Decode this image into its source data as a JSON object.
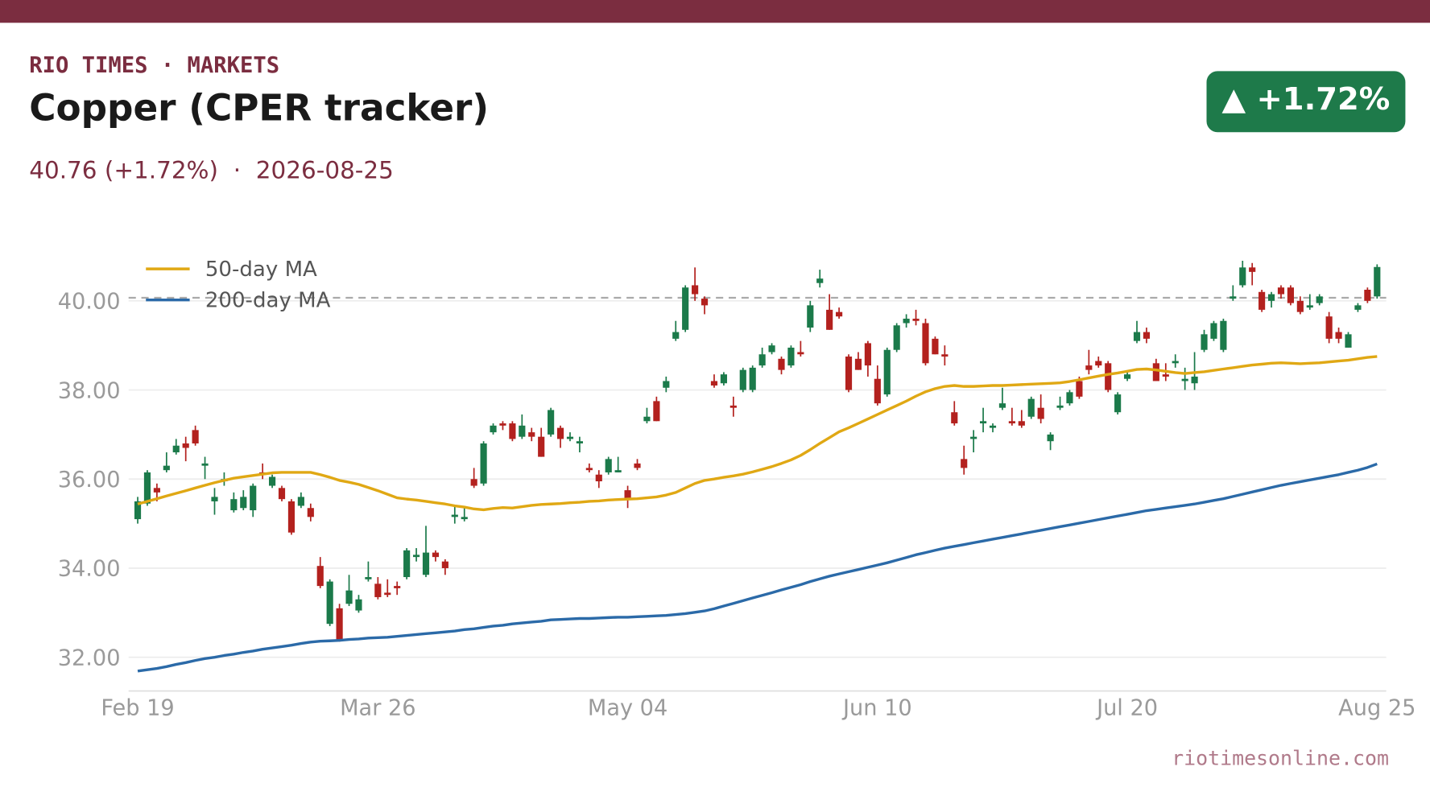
{
  "header": {
    "kicker": "RIO TIMES · MARKETS",
    "badge": "▲ +1.72%"
  },
  "chart_data": {
    "type": "candlestick",
    "title": "Copper (CPER tracker)",
    "subtitle": "40.76 (+1.72%)  ·  2026-08-25",
    "source": "riotimesonline.com",
    "up_color": "#1b7a4a",
    "down_color": "#b3211e",
    "grid": true,
    "legend": "upper left",
    "hline": 40.07,
    "ylim": [
      31.25,
      41.2
    ],
    "yticks": [
      {
        "value": 32,
        "label": "32.00"
      },
      {
        "value": 34,
        "label": "34.00"
      },
      {
        "value": 36,
        "label": "36.00"
      },
      {
        "value": 38,
        "label": "38.00"
      },
      {
        "value": 40,
        "label": "40.00"
      }
    ],
    "categories": [
      "Feb 19",
      null,
      null,
      null,
      null,
      null,
      null,
      null,
      null,
      null,
      null,
      null,
      null,
      null,
      null,
      null,
      null,
      null,
      null,
      null,
      null,
      null,
      null,
      null,
      null,
      "Mar 26",
      null,
      null,
      null,
      null,
      null,
      null,
      null,
      null,
      null,
      null,
      null,
      null,
      null,
      null,
      null,
      null,
      null,
      null,
      null,
      null,
      null,
      null,
      null,
      null,
      null,
      "May 04",
      null,
      null,
      null,
      null,
      null,
      null,
      null,
      null,
      null,
      null,
      null,
      null,
      null,
      null,
      null,
      null,
      null,
      null,
      null,
      null,
      null,
      null,
      null,
      null,
      null,
      "Jun 10",
      null,
      null,
      null,
      null,
      null,
      null,
      null,
      null,
      null,
      null,
      null,
      null,
      null,
      null,
      null,
      null,
      null,
      null,
      null,
      null,
      null,
      null,
      null,
      null,
      null,
      "Jul 20",
      null,
      null,
      null,
      null,
      null,
      null,
      null,
      null,
      null,
      null,
      null,
      null,
      null,
      null,
      null,
      null,
      null,
      null,
      null,
      null,
      null,
      null,
      null,
      null,
      null,
      "Aug 25"
    ],
    "open": [
      35.1,
      35.45,
      35.8,
      36.2,
      36.6,
      36.8,
      37.1,
      36.3,
      35.5,
      35.95,
      35.3,
      35.35,
      35.3,
      36.15,
      35.85,
      35.8,
      35.5,
      35.4,
      35.35,
      34.05,
      32.75,
      33.1,
      33.2,
      33.05,
      33.75,
      33.65,
      33.45,
      33.6,
      33.8,
      34.25,
      33.85,
      34.35,
      34.15,
      35.15,
      35.1,
      36.0,
      35.9,
      37.05,
      37.25,
      37.25,
      36.95,
      37.05,
      36.95,
      37.0,
      37.15,
      36.9,
      36.8,
      36.25,
      36.1,
      36.15,
      36.15,
      35.75,
      36.35,
      37.3,
      37.75,
      38.05,
      39.15,
      39.35,
      40.35,
      40.05,
      38.2,
      38.15,
      37.65,
      38.0,
      38.0,
      38.55,
      38.85,
      38.7,
      38.55,
      38.85,
      39.4,
      40.4,
      39.8,
      39.75,
      38.75,
      38.7,
      39.05,
      38.25,
      37.9,
      38.9,
      39.5,
      39.6,
      39.5,
      39.15,
      38.8,
      37.5,
      36.45,
      36.9,
      37.25,
      37.15,
      37.6,
      37.3,
      37.3,
      37.4,
      37.6,
      36.85,
      37.6,
      37.7,
      38.2,
      38.55,
      38.65,
      38.6,
      37.5,
      38.25,
      39.1,
      39.3,
      38.6,
      38.35,
      38.6,
      38.2,
      38.15,
      38.9,
      39.15,
      38.9,
      40.05,
      40.35,
      40.75,
      40.2,
      40.0,
      40.3,
      40.3,
      40.0,
      39.85,
      39.95,
      39.65,
      39.3,
      38.95,
      39.8,
      40.25,
      40.1
    ],
    "high": [
      35.6,
      36.2,
      35.9,
      36.6,
      36.9,
      36.95,
      37.2,
      36.5,
      35.8,
      36.15,
      35.7,
      35.75,
      35.9,
      36.35,
      36.1,
      35.85,
      35.55,
      35.7,
      35.45,
      34.25,
      33.75,
      33.2,
      33.85,
      33.4,
      34.15,
      33.8,
      33.75,
      33.7,
      34.45,
      34.45,
      34.95,
      34.4,
      34.2,
      35.4,
      35.35,
      36.25,
      36.85,
      37.25,
      37.3,
      37.3,
      37.45,
      37.15,
      37.15,
      37.6,
      37.2,
      37.05,
      36.95,
      36.35,
      36.2,
      36.5,
      36.5,
      35.85,
      36.45,
      37.6,
      37.85,
      38.3,
      39.55,
      40.35,
      40.75,
      40.1,
      38.35,
      38.4,
      37.85,
      38.5,
      38.55,
      38.95,
      39.05,
      38.75,
      39.0,
      39.1,
      40.0,
      40.7,
      40.15,
      39.85,
      38.8,
      38.85,
      39.1,
      38.55,
      38.95,
      39.5,
      39.7,
      39.8,
      39.6,
      39.2,
      39.0,
      37.75,
      36.75,
      37.1,
      37.6,
      37.25,
      38.05,
      37.6,
      37.55,
      37.85,
      37.9,
      37.05,
      37.85,
      38.0,
      38.3,
      38.9,
      38.75,
      38.65,
      37.95,
      38.4,
      39.55,
      39.4,
      38.7,
      38.6,
      38.8,
      38.5,
      38.85,
      39.35,
      39.55,
      39.6,
      40.35,
      40.9,
      40.85,
      40.25,
      40.2,
      40.35,
      40.35,
      40.1,
      40.15,
      40.15,
      39.75,
      39.4,
      39.3,
      39.95,
      40.3,
      40.82
    ],
    "low": [
      35.0,
      35.4,
      35.5,
      36.15,
      36.55,
      36.4,
      36.75,
      36.0,
      35.2,
      35.85,
      35.25,
      35.3,
      35.15,
      36.0,
      35.8,
      35.5,
      34.75,
      35.35,
      35.05,
      33.55,
      32.7,
      32.35,
      33.15,
      33.0,
      33.7,
      33.3,
      33.35,
      33.4,
      33.75,
      34.15,
      33.8,
      34.15,
      33.85,
      35.0,
      35.05,
      35.8,
      35.85,
      37.0,
      37.1,
      36.85,
      36.9,
      36.85,
      36.5,
      36.95,
      36.7,
      36.85,
      36.6,
      36.15,
      35.8,
      36.1,
      36.15,
      35.35,
      36.2,
      37.25,
      37.3,
      37.95,
      39.1,
      39.3,
      40.0,
      39.7,
      38.05,
      38.1,
      37.4,
      37.95,
      37.95,
      38.5,
      38.8,
      38.35,
      38.5,
      38.75,
      39.3,
      40.3,
      39.35,
      39.6,
      37.95,
      38.45,
      38.3,
      37.65,
      37.85,
      38.85,
      39.4,
      39.45,
      38.55,
      38.8,
      38.55,
      37.2,
      36.1,
      36.6,
      37.05,
      37.05,
      37.55,
      37.2,
      37.15,
      37.35,
      37.25,
      36.65,
      37.55,
      37.65,
      37.8,
      38.35,
      38.5,
      37.95,
      37.45,
      38.2,
      39.05,
      39.05,
      38.2,
      38.2,
      38.5,
      38.0,
      38.0,
      38.85,
      39.1,
      38.85,
      40.0,
      40.3,
      40.35,
      39.75,
      39.85,
      40.05,
      39.9,
      39.7,
      39.8,
      39.9,
      39.05,
      39.05,
      38.95,
      39.75,
      39.95,
      40.05
    ],
    "close": [
      35.5,
      36.15,
      35.7,
      36.3,
      36.75,
      36.7,
      36.8,
      36.35,
      35.6,
      36.0,
      35.55,
      35.6,
      35.85,
      36.1,
      36.05,
      35.55,
      34.8,
      35.6,
      35.15,
      33.6,
      33.7,
      32.4,
      33.5,
      33.3,
      33.8,
      33.35,
      33.4,
      33.55,
      34.4,
      34.3,
      34.35,
      34.25,
      34.0,
      35.2,
      35.15,
      35.85,
      36.8,
      37.2,
      37.2,
      36.9,
      37.2,
      36.95,
      36.5,
      37.55,
      36.9,
      36.95,
      36.85,
      36.2,
      35.95,
      36.45,
      36.2,
      35.55,
      36.25,
      37.4,
      37.3,
      38.2,
      39.3,
      40.3,
      40.15,
      39.9,
      38.1,
      38.35,
      37.6,
      38.45,
      38.5,
      38.8,
      39.0,
      38.45,
      38.95,
      38.8,
      39.9,
      40.5,
      39.35,
      39.65,
      38.0,
      38.45,
      38.55,
      37.7,
      38.9,
      39.45,
      39.6,
      39.55,
      38.6,
      38.8,
      38.75,
      37.25,
      36.25,
      36.95,
      37.3,
      37.2,
      37.7,
      37.25,
      37.2,
      37.8,
      37.35,
      37.0,
      37.65,
      37.95,
      37.85,
      38.45,
      38.55,
      38.0,
      37.9,
      38.35,
      39.3,
      39.15,
      38.2,
      38.3,
      38.65,
      38.25,
      38.3,
      39.25,
      39.5,
      39.55,
      40.1,
      40.75,
      40.65,
      39.8,
      40.15,
      40.15,
      39.95,
      39.75,
      39.9,
      40.1,
      39.15,
      39.15,
      39.25,
      39.9,
      40.0,
      40.76
    ],
    "series": [
      {
        "name": "50-day MA",
        "color": "#e0a814",
        "values": [
          35.44,
          35.5,
          35.56,
          35.62,
          35.68,
          35.74,
          35.8,
          35.86,
          35.92,
          35.97,
          36.02,
          36.05,
          36.08,
          36.11,
          36.14,
          36.15,
          36.15,
          36.15,
          36.15,
          36.1,
          36.04,
          35.97,
          35.93,
          35.88,
          35.81,
          35.74,
          35.66,
          35.58,
          35.55,
          35.53,
          35.5,
          35.47,
          35.44,
          35.4,
          35.37,
          35.33,
          35.31,
          35.34,
          35.36,
          35.35,
          35.38,
          35.41,
          35.43,
          35.44,
          35.45,
          35.47,
          35.48,
          35.5,
          35.51,
          35.53,
          35.54,
          35.55,
          35.56,
          35.58,
          35.6,
          35.64,
          35.7,
          35.8,
          35.9,
          35.97,
          36.0,
          36.04,
          36.07,
          36.11,
          36.16,
          36.22,
          36.28,
          36.35,
          36.43,
          36.53,
          36.66,
          36.8,
          36.93,
          37.06,
          37.15,
          37.25,
          37.35,
          37.45,
          37.55,
          37.65,
          37.75,
          37.86,
          37.96,
          38.03,
          38.08,
          38.1,
          38.08,
          38.08,
          38.09,
          38.1,
          38.1,
          38.11,
          38.12,
          38.13,
          38.14,
          38.15,
          38.16,
          38.19,
          38.23,
          38.27,
          38.31,
          38.35,
          38.38,
          38.42,
          38.46,
          38.47,
          38.45,
          38.42,
          38.39,
          38.37,
          38.39,
          38.41,
          38.44,
          38.47,
          38.5,
          38.53,
          38.56,
          38.58,
          38.6,
          38.61,
          38.6,
          38.59,
          38.6,
          38.61,
          38.63,
          38.65,
          38.67,
          38.7,
          38.73,
          38.75
        ]
      },
      {
        "name": "200-day MA",
        "color": "#2b6aa8",
        "values": [
          31.69,
          31.72,
          31.75,
          31.79,
          31.84,
          31.88,
          31.93,
          31.97,
          32.0,
          32.04,
          32.07,
          32.11,
          32.14,
          32.18,
          32.21,
          32.24,
          32.27,
          32.31,
          32.34,
          32.36,
          32.37,
          32.38,
          32.4,
          32.41,
          32.43,
          32.44,
          32.45,
          32.47,
          32.49,
          32.51,
          32.53,
          32.55,
          32.57,
          32.59,
          32.62,
          32.64,
          32.67,
          32.7,
          32.72,
          32.75,
          32.77,
          32.79,
          32.81,
          32.84,
          32.85,
          32.86,
          32.87,
          32.87,
          32.88,
          32.89,
          32.9,
          32.9,
          32.91,
          32.92,
          32.93,
          32.94,
          32.96,
          32.98,
          33.01,
          33.04,
          33.09,
          33.15,
          33.21,
          33.27,
          33.33,
          33.39,
          33.45,
          33.51,
          33.57,
          33.63,
          33.7,
          33.76,
          33.82,
          33.87,
          33.92,
          33.97,
          34.02,
          34.07,
          34.12,
          34.18,
          34.24,
          34.3,
          34.35,
          34.4,
          34.45,
          34.49,
          34.53,
          34.57,
          34.61,
          34.65,
          34.69,
          34.73,
          34.77,
          34.81,
          34.85,
          34.89,
          34.93,
          34.97,
          35.01,
          35.05,
          35.09,
          35.13,
          35.17,
          35.21,
          35.25,
          35.29,
          35.32,
          35.35,
          35.38,
          35.41,
          35.44,
          35.48,
          35.52,
          35.56,
          35.61,
          35.66,
          35.71,
          35.76,
          35.81,
          35.86,
          35.9,
          35.94,
          35.98,
          36.02,
          36.06,
          36.1,
          36.15,
          36.2,
          36.26,
          36.34
        ]
      }
    ]
  }
}
